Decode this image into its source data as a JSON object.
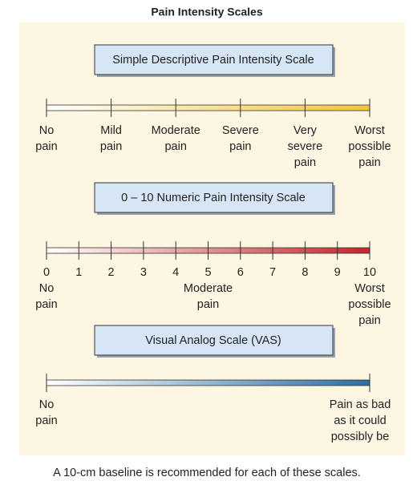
{
  "title": "Pain Intensity Scales",
  "scales": [
    {
      "title": "Simple Descriptive Pain Intensity Scale",
      "labels": [
        [
          "No",
          "pain"
        ],
        [
          "Mild",
          "pain"
        ],
        [
          "Moderate",
          "pain"
        ],
        [
          "Severe",
          "pain"
        ],
        [
          "Very",
          "severe",
          "pain"
        ],
        [
          "Worst",
          "possible",
          "pain"
        ]
      ]
    },
    {
      "title": "0 – 10 Numeric Pain Intensity Scale",
      "ticks": [
        0,
        1,
        2,
        3,
        4,
        5,
        6,
        7,
        8,
        9,
        10
      ],
      "labels": [
        [
          "No",
          "pain"
        ],
        [
          "Moderate",
          "pain"
        ],
        [
          "Worst",
          "possible",
          "pain"
        ]
      ]
    },
    {
      "title": "Visual Analog Scale (VAS)",
      "labels": [
        [
          "No",
          "pain"
        ],
        [
          "Pain as bad",
          "as it could",
          "possibly be"
        ]
      ]
    }
  ],
  "caption": "A 10-cm baseline is recommended for each of these scales."
}
